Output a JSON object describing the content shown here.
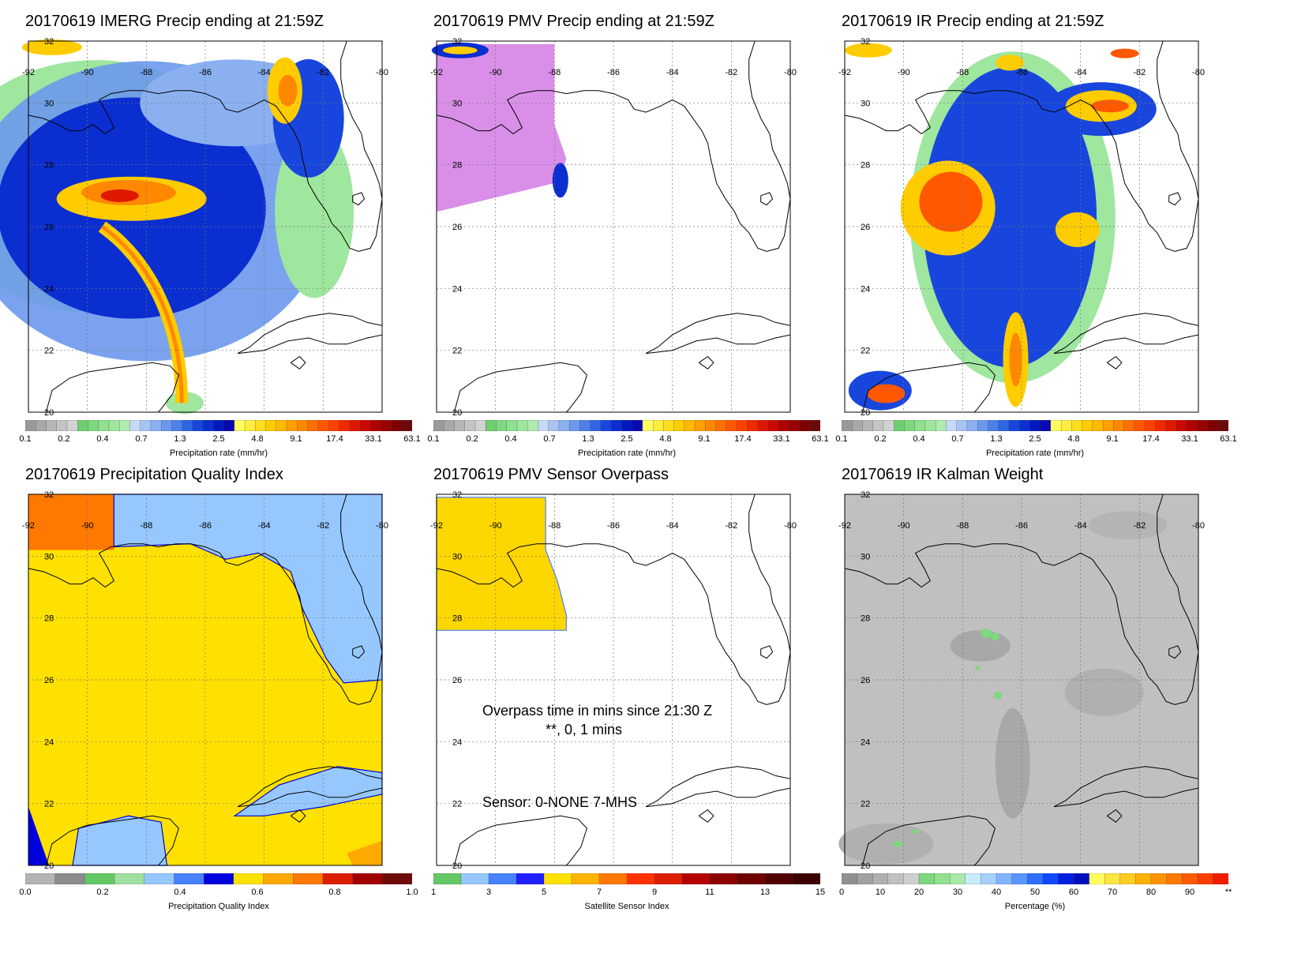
{
  "panels": [
    {
      "title": "20170619 IMERG Precip ending at 21:59Z",
      "type": "precip",
      "colorbar": {
        "label": "Precipitation rate (mm/hr)",
        "ticks": [
          "0.1",
          "0.2",
          "0.4",
          "0.7",
          "1.3",
          "2.5",
          "4.8",
          "9.1",
          "17.4",
          "33.1",
          "63.1"
        ]
      }
    },
    {
      "title": "20170619 PMV Precip ending at 21:59Z",
      "type": "pmv",
      "colorbar": {
        "label": "Precipitation rate (mm/hr)",
        "ticks": [
          "0.1",
          "0.2",
          "0.4",
          "0.7",
          "1.3",
          "2.5",
          "4.8",
          "9.1",
          "17.4",
          "33.1",
          "63.1"
        ]
      }
    },
    {
      "title": "20170619 IR Precip ending at 21:59Z",
      "type": "ir",
      "colorbar": {
        "label": "Precipitation rate (mm/hr)",
        "ticks": [
          "0.1",
          "0.2",
          "0.4",
          "0.7",
          "1.3",
          "2.5",
          "4.8",
          "9.1",
          "17.4",
          "33.1",
          "63.1"
        ]
      }
    },
    {
      "title": "20170619 Precipitation Quality Index",
      "type": "pqi",
      "colorbar": {
        "label": "Precipitation Quality Index",
        "ticks": [
          "0.0",
          "0.2",
          "0.4",
          "0.6",
          "0.8",
          "1.0"
        ]
      }
    },
    {
      "title": "20170619 PMV Sensor Overpass",
      "type": "sensor",
      "colorbar": {
        "label": "Satellite Sensor Index",
        "ticks": [
          "1",
          "3",
          "5",
          "7",
          "9",
          "11",
          "13",
          "15"
        ]
      },
      "overlay": {
        "overpass_line1": "Overpass time in mins since 21:30 Z",
        "overpass_line2": "**, 0, 1 mins",
        "sensor_line": "Sensor:   0-NONE  7-MHS"
      }
    },
    {
      "title": "20170619 IR Kalman Weight",
      "type": "kalman",
      "colorbar": {
        "label": "Percentage (%)",
        "ticks": [
          "0",
          "10",
          "20",
          "30",
          "40",
          "50",
          "60",
          "70",
          "80",
          "90",
          "**"
        ]
      }
    }
  ],
  "map_axes": {
    "lon_labels": [
      "-92",
      "-90",
      "-88",
      "-86",
      "-84",
      "-82",
      "-80"
    ],
    "lat_labels": [
      "32",
      "30",
      "28",
      "26",
      "24",
      "22",
      "20"
    ]
  },
  "colors": {
    "precip_scale": [
      "#9a9a9a",
      "#a8a8a8",
      "#b6b6b6",
      "#c4c4c4",
      "#d2d2d2",
      "#6fcf6f",
      "#7fd87f",
      "#8fe08f",
      "#9fe69f",
      "#afecaf",
      "#c8d8f8",
      "#a8c4f4",
      "#8ab0f0",
      "#6c98ec",
      "#4e80e8",
      "#2f64e4",
      "#1846dc",
      "#0a2ed0",
      "#0018c0",
      "#0a08b0",
      "#ffff60",
      "#ffee40",
      "#ffde20",
      "#ffcc00",
      "#ffb800",
      "#ffa000",
      "#ff8800",
      "#ff7000",
      "#ff5800",
      "#ff4000",
      "#f02a00",
      "#e01800",
      "#c80a00",
      "#b00000",
      "#980000",
      "#800000",
      "#6a0a0a"
    ],
    "pqi_scale": [
      "#b4b4b4",
      "#8c8c8c",
      "#64c864",
      "#a0e0a0",
      "#96c8ff",
      "#4682ff",
      "#0000dc",
      "#ffe100",
      "#ffaa00",
      "#ff7800",
      "#dc1e00",
      "#a00000",
      "#6e0a0a"
    ],
    "sensor_scale": [
      "#64c864",
      "#96c8ff",
      "#4682ff",
      "#1e1eff",
      "#ffe100",
      "#ffb400",
      "#ff7800",
      "#ff3200",
      "#dc1e00",
      "#b40000",
      "#8c0000",
      "#6e0000",
      "#500000",
      "#3c0000"
    ],
    "kalman_scale": [
      "#909090",
      "#a0a0a0",
      "#b0b0b0",
      "#c0c0c0",
      "#d0d0d0",
      "#7ed87e",
      "#90e090",
      "#a8eaa8",
      "#c8ecff",
      "#a8d0ff",
      "#80b4ff",
      "#5896ff",
      "#3070ff",
      "#1048ff",
      "#0020e0",
      "#0010c0",
      "#ffff60",
      "#ffe640",
      "#ffcc20",
      "#ffb000",
      "#ff9400",
      "#ff7800",
      "#ff5c00",
      "#ff3c00",
      "#f01c00"
    ],
    "pmv_swath": "#d98ee8",
    "sensor_swath": "#ffd700"
  }
}
